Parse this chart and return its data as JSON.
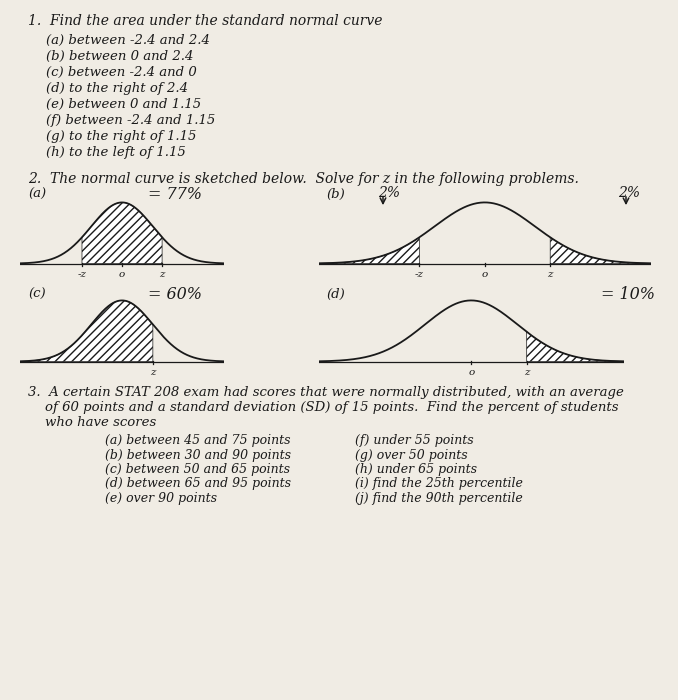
{
  "bg_color": "#f0ece4",
  "q1_header": "1.  Find the area under the standard normal curve",
  "q1_items": [
    "(a) between -2.4 and 2.4",
    "(b) between 0 and 2.4",
    "(c) between -2.4 and 0",
    "(d) to the right of 2.4",
    "(e) between 0 and 1.15",
    "(f) between -2.4 and 1.15",
    "(g) to the right of 1.15",
    "(h) to the left of 1.15"
  ],
  "q2_header": "2.  The normal curve is sketched below.  Solve for z in the following problems.",
  "annotation_a": "= 77%",
  "annotation_b_left": "2%",
  "annotation_b_right": "2%",
  "annotation_c": "= 60%",
  "annotation_d": "= 10%",
  "q3_line1": "3.  A certain STAT 208 exam had scores that were normally distributed, with an average",
  "q3_line2": "    of 60 points and a standard deviation (SD) of 15 points.  Find the percent of students",
  "q3_line3": "    who have scores",
  "q3_left": [
    "(a) between 45 and 75 points",
    "(b) between 30 and 90 points",
    "(c) between 50 and 65 points",
    "(d) between 65 and 95 points",
    "(e) over 90 points"
  ],
  "q3_right": [
    "(f) under 55 points",
    "(g) over 50 points",
    "(h) under 65 points",
    "(i) find the 25th percentile",
    "(j) find the 90th percentile"
  ],
  "curve_color": "#1a1a1a",
  "text_color": "#1a1a1a"
}
